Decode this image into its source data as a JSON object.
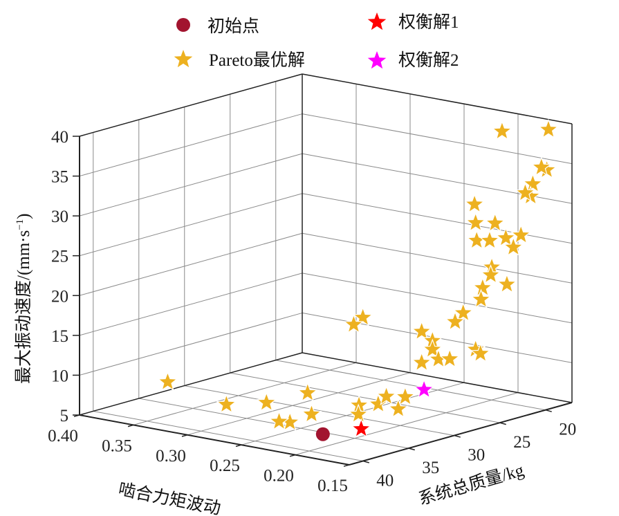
{
  "chart_data": {
    "type": "scatter3d",
    "xlabel": "啮合力矩波动",
    "ylabel": "系统总质量/kg",
    "zlabel": {
      "main": "最大振动速度/(mm·s",
      "sup": "−1",
      "close": ")"
    },
    "xlim": [
      0.15,
      0.4
    ],
    "ylim": [
      17.1,
      41.5
    ],
    "zlim": [
      5,
      40
    ],
    "xticks": [
      "0.15",
      "0.20",
      "0.25",
      "0.30",
      "0.35",
      "0.40"
    ],
    "yticks": [
      "20",
      "25",
      "30",
      "35",
      "40"
    ],
    "zticks": [
      "5",
      "10",
      "15",
      "20",
      "25",
      "30",
      "35",
      "40"
    ],
    "grid": true,
    "legend_position": "top",
    "legend": [
      {
        "label": "初始点",
        "marker": "circle",
        "color": "#A2142F"
      },
      {
        "label": "权衡解1",
        "marker": "star",
        "color": "#FF0000"
      },
      {
        "label": "Pareto最优解",
        "marker": "star",
        "color": "#EDB120"
      },
      {
        "label": "权衡解2",
        "marker": "star",
        "color": "#FF00FF"
      }
    ],
    "series": [
      {
        "name": "Pareto最优解",
        "marker": "star",
        "color": "#EDB120",
        "points": [
          [
            0.1945,
            19.5,
            38.7
          ],
          [
            0.1515,
            19.5,
            40.0
          ],
          [
            0.153,
            19.5,
            34.9
          ],
          [
            0.158,
            19.5,
            35.1
          ],
          [
            0.166,
            19.5,
            32.8
          ],
          [
            0.168,
            19.5,
            31.2
          ],
          [
            0.173,
            19.5,
            31.5
          ],
          [
            0.22,
            19.5,
            28.9
          ],
          [
            0.219,
            19.5,
            26.6
          ],
          [
            0.201,
            19.5,
            27.0
          ],
          [
            0.218,
            19.5,
            24.4
          ],
          [
            0.206,
            19.5,
            24.7
          ],
          [
            0.191,
            19.5,
            25.4
          ],
          [
            0.177,
            19.5,
            26.1
          ],
          [
            0.184,
            19.5,
            24.4
          ],
          [
            0.204,
            19.5,
            21.4
          ],
          [
            0.205,
            19.5,
            20.4
          ],
          [
            0.19,
            19.5,
            19.6
          ],
          [
            0.2125,
            19.5,
            18.6
          ],
          [
            0.214,
            19.5,
            17.1
          ],
          [
            0.2305,
            19.5,
            15.0
          ],
          [
            0.238,
            19.5,
            13.7
          ],
          [
            0.269,
            19.5,
            11.7
          ],
          [
            0.259,
            19.5,
            10.8
          ],
          [
            0.259,
            19.5,
            9.7
          ],
          [
            0.2535,
            19.5,
            8.6
          ],
          [
            0.243,
            19.5,
            8.9
          ],
          [
            0.269,
            19.5,
            7.8
          ],
          [
            0.219,
            19.5,
            10.7
          ],
          [
            0.2145,
            19.5,
            10.3
          ],
          [
            0.3235,
            19.5,
            12.1
          ],
          [
            0.332,
            19.5,
            11.0
          ],
          [
            0.2225,
            26.8,
            7.0
          ],
          [
            0.218,
            28.1,
            6.0
          ],
          [
            0.223,
            29.7,
            7.0
          ],
          [
            0.2315,
            30.8,
            7.0
          ],
          [
            0.2295,
            31.1,
            6.0
          ],
          [
            0.218,
            29.4,
            8.0
          ],
          [
            0.256,
            33.1,
            6.0
          ],
          [
            0.269,
            32.0,
            8.0
          ],
          [
            0.26,
            35.0,
            5.5
          ],
          [
            0.2675,
            35.3,
            5.5
          ],
          [
            0.2885,
            34.2,
            7.0
          ],
          [
            0.307,
            36.4,
            7.0
          ],
          [
            0.353,
            37.4,
            9.0
          ]
        ]
      },
      {
        "name": "初始点",
        "marker": "circle",
        "color": "#A2142F",
        "points": [
          [
            0.21,
            37.3,
            6.0
          ]
        ]
      },
      {
        "name": "权衡解1",
        "marker": "star",
        "color": "#FF0000",
        "points": [
          [
            0.199,
            34.4,
            6.0
          ]
        ]
      },
      {
        "name": "权衡解2",
        "marker": "star",
        "color": "#FF00FF",
        "points": [
          [
            0.2025,
            27.1,
            8.5
          ]
        ]
      }
    ]
  }
}
